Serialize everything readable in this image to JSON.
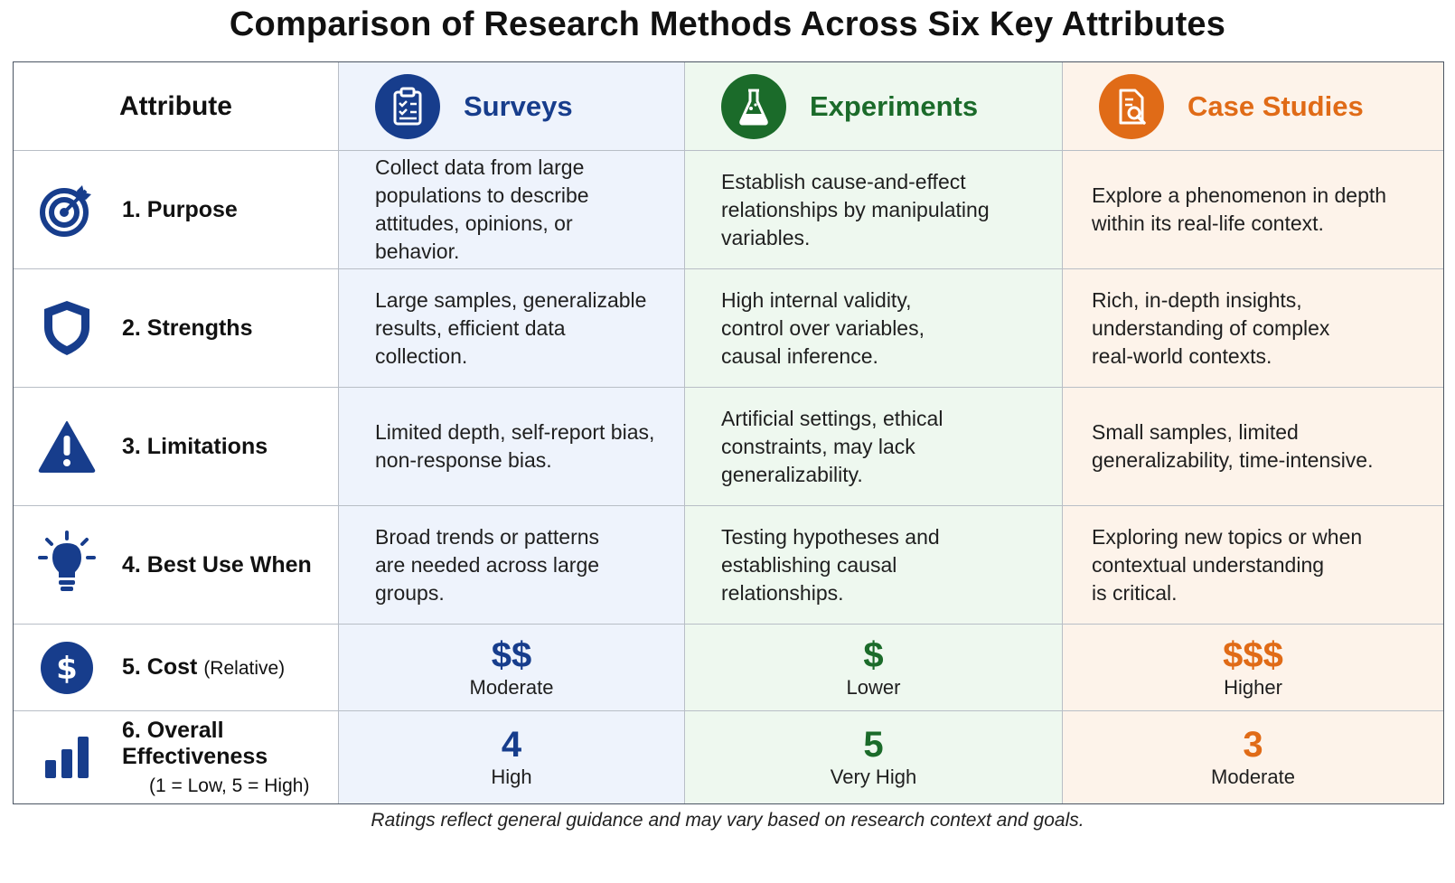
{
  "title": "Comparison of Research Methods Across Six Key Attributes",
  "colors": {
    "surveys": "#173d8c",
    "experiments": "#1b6b2a",
    "case_studies": "#e06b17"
  },
  "header": {
    "attribute": "Attribute",
    "methods": [
      {
        "label": "Surveys",
        "icon": "clipboard-icon"
      },
      {
        "label": "Experiments",
        "icon": "flask-icon"
      },
      {
        "label": "Case Studies",
        "icon": "document-search-icon"
      }
    ]
  },
  "rows": [
    {
      "label": "1. Purpose",
      "icon": "target-icon",
      "surveys": "Collect data from large\npopulations to describe\nattitudes, opinions, or behavior.",
      "experiments": "Establish cause-and-effect\nrelationships by manipulating\nvariables.",
      "case_studies": "Explore a phenomenon in depth\nwithin its real-life context."
    },
    {
      "label": "2. Strengths",
      "icon": "shield-icon",
      "surveys": "Large samples, generalizable\nresults, efficient data collection.",
      "experiments": "High internal validity,\ncontrol over variables,\ncausal inference.",
      "case_studies": "Rich, in-depth insights,\nunderstanding of complex\nreal-world contexts."
    },
    {
      "label": "3. Limitations",
      "icon": "warning-icon",
      "surveys": "Limited depth, self-report bias,\nnon-response bias.",
      "experiments": "Artificial settings, ethical\nconstraints, may lack\ngeneralizability.",
      "case_studies": "Small samples, limited\ngeneralizability, time-intensive."
    },
    {
      "label": "4. Best Use When",
      "icon": "lightbulb-icon",
      "surveys": "Broad trends or patterns\nare needed across large\ngroups.",
      "experiments": "Testing hypotheses and\nestablishing causal\nrelationships.",
      "case_studies": "Exploring new topics or when\ncontextual understanding\nis critical."
    }
  ],
  "cost": {
    "label": "5. Cost",
    "sublabel": "(Relative)",
    "icon": "dollar-icon",
    "surveys": {
      "symbol": "$$",
      "text": "Moderate"
    },
    "experiments": {
      "symbol": "$",
      "text": "Lower"
    },
    "case_studies": {
      "symbol": "$$$",
      "text": "Higher"
    }
  },
  "effectiveness": {
    "label": "6. Overall Effectiveness",
    "note": "(1 = Low, 5 = High)",
    "icon": "bar-chart-icon",
    "surveys": {
      "score": "4",
      "text": "High"
    },
    "experiments": {
      "score": "5",
      "text": "Very High"
    },
    "case_studies": {
      "score": "3",
      "text": "Moderate"
    }
  },
  "footnote": "Ratings reflect general guidance and may vary based on research context and goals."
}
